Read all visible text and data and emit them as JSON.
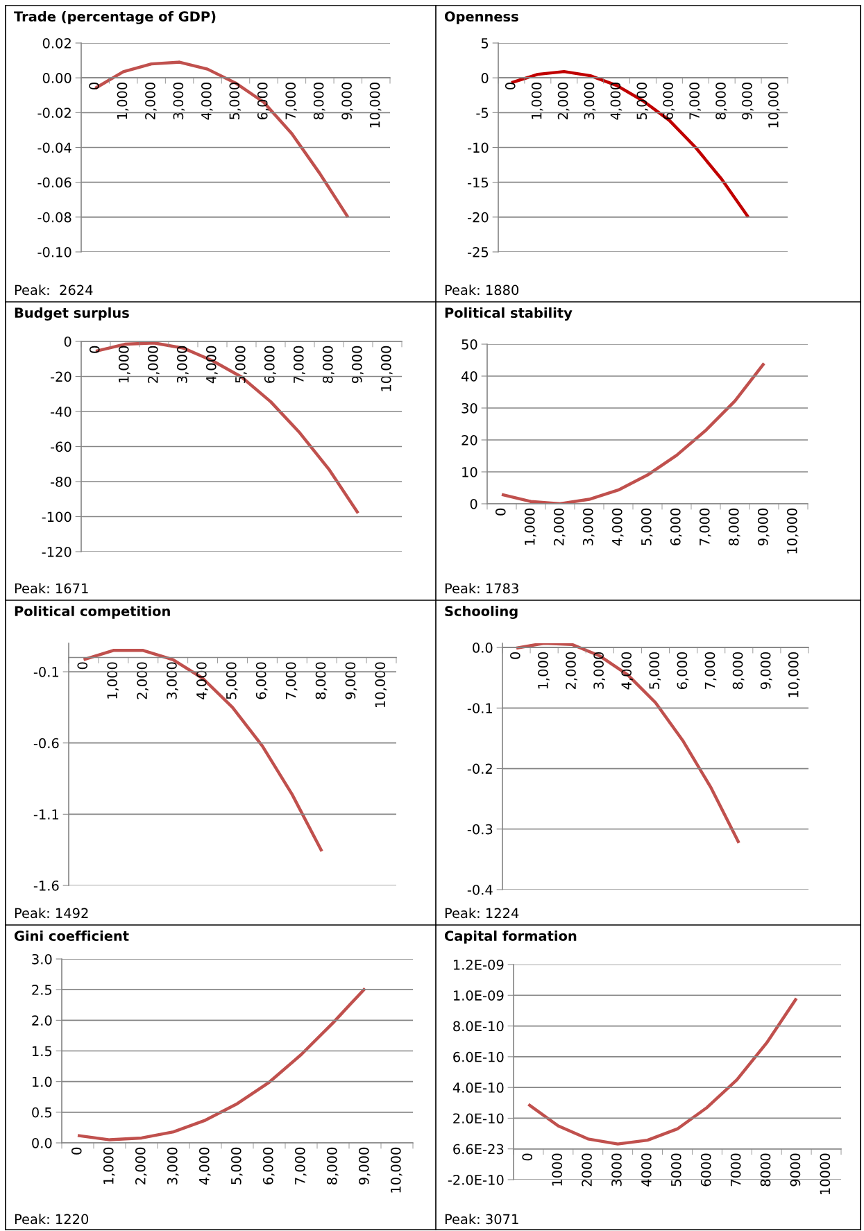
{
  "chart_data": [
    {
      "type": "line",
      "title": "Trade (percentage of GDP)",
      "categories": [
        "0",
        "1,000",
        "2,000",
        "3,000",
        "4,000",
        "5,000",
        "6,000",
        "7,000",
        "8,000",
        "9,000",
        "10,000"
      ],
      "values": [
        -0.006,
        0.0035,
        0.008,
        0.009,
        0.005,
        -0.003,
        -0.014,
        -0.032,
        -0.055,
        -0.08,
        null
      ],
      "color": "#c0504d",
      "ylim": [
        -0.1,
        0.02
      ],
      "yticks": [
        {
          "value": -0.1,
          "label": "-0.10"
        },
        {
          "value": -0.08,
          "label": "-0.08"
        },
        {
          "value": -0.06,
          "label": "-0.06"
        },
        {
          "value": -0.04,
          "label": "-0.04"
        },
        {
          "value": -0.02,
          "label": "-0.02"
        },
        {
          "value": 0,
          "label": "0.00"
        },
        {
          "value": 0.02,
          "label": "0.02"
        }
      ],
      "grid": "y",
      "annotations": [
        "Peak:  2624"
      ]
    },
    {
      "type": "line",
      "title": "Openness",
      "categories": [
        "0",
        "1,000",
        "2,000",
        "3,000",
        "4,000",
        "5,000",
        "6,000",
        "7,000",
        "8,000",
        "9,000",
        "10,000"
      ],
      "values": [
        -0.7,
        0.5,
        0.9,
        0.3,
        -1.1,
        -3.3,
        -6.1,
        -10,
        -14.6,
        -20,
        null
      ],
      "color": "#c00000",
      "ylim": [
        -25,
        5
      ],
      "yticks": [
        -25,
        -20,
        -15,
        -10,
        -5,
        0,
        5
      ],
      "grid": "y",
      "annotations": [
        "Peak: 1880"
      ]
    },
    {
      "type": "line",
      "title": "Budget surplus",
      "categories": [
        "0",
        "1,000",
        "2,000",
        "3,000",
        "4,000",
        "5,000",
        "6,000",
        "7,000",
        "8,000",
        "9,000",
        "10,000"
      ],
      "values": [
        -5.6,
        -1.6,
        -0.9,
        -3.8,
        -11,
        -20.3,
        -34.4,
        -52.2,
        -73,
        -98,
        null
      ],
      "color": "#c0504d",
      "ylim": [
        -120,
        0
      ],
      "yticks": [
        -120,
        -100,
        -80,
        -60,
        -40,
        -20,
        0
      ],
      "grid": "y",
      "annotations": [
        "Peak: 1671"
      ]
    },
    {
      "type": "line",
      "title": "Political stability",
      "categories": [
        "0",
        "1,000",
        "2,000",
        "3,000",
        "4,000",
        "5,000",
        "6,000",
        "7,000",
        "8,000",
        "9,000",
        "10,000"
      ],
      "values": [
        2.9,
        0.7,
        0,
        1.4,
        4.3,
        9,
        15.2,
        23,
        32.2,
        44,
        null
      ],
      "color": "#c0504d",
      "ylim": [
        0,
        50
      ],
      "yticks": [
        0,
        10,
        20,
        30,
        40,
        50
      ],
      "grid": "y",
      "annotations": [
        "Peak: 1783"
      ]
    },
    {
      "type": "line",
      "title": "Political competition",
      "categories": [
        "0",
        "1,000",
        "2,000",
        "3,000",
        "4,000",
        "5,000",
        "6,000",
        "7,000",
        "8,000",
        "9,000",
        "10,000"
      ],
      "values": [
        -0.015,
        0.05,
        0.05,
        -0.015,
        -0.146,
        -0.35,
        -0.62,
        -0.96,
        -1.36,
        null,
        null
      ],
      "color": "#c0504d",
      "ylim": [
        -1.6,
        0.1
      ],
      "yticks": [
        -1.6,
        -1.1,
        -0.6,
        -0.1
      ],
      "grid": "y",
      "annotations": [
        "Peak: 1492"
      ]
    },
    {
      "type": "line",
      "title": "Schooling",
      "categories": [
        "0",
        "1,000",
        "2,000",
        "3,000",
        "4,000",
        "5,000",
        "6,000",
        "7,000",
        "8,000",
        "9,000",
        "10,000"
      ],
      "values": [
        -0.001,
        0.007,
        0.005,
        -0.014,
        -0.045,
        -0.091,
        -0.155,
        -0.232,
        -0.323,
        null,
        null
      ],
      "color": "#c0504d",
      "ylim": [
        -0.4,
        0.007
      ],
      "yticks": [
        -0.4,
        -0.3,
        -0.2,
        -0.1,
        {
          "value": 0,
          "label": "0.0"
        }
      ],
      "grid": "y",
      "annotations": [
        "Peak: 1224"
      ]
    },
    {
      "type": "line",
      "title": "Gini coefficient",
      "categories": [
        "0",
        "1,000",
        "2,000",
        "3,000",
        "4,000",
        "5,000",
        "6,000",
        "7,000",
        "8,000",
        "9,000",
        "10,000"
      ],
      "values": [
        0.12,
        0.05,
        0.08,
        0.18,
        0.37,
        0.64,
        0.99,
        1.44,
        1.96,
        2.52,
        null
      ],
      "color": "#c0504d",
      "ylim": [
        0,
        3
      ],
      "yticks": [
        {
          "value": 0,
          "label": "0.0"
        },
        0.5,
        {
          "value": 1,
          "label": "1.0"
        },
        1.5,
        {
          "value": 2,
          "label": "2.0"
        },
        2.5,
        {
          "value": 3,
          "label": "3.0"
        }
      ],
      "grid": "y",
      "annotations": [
        "Peak: 1220"
      ]
    },
    {
      "type": "line",
      "title": "Capital formation",
      "categories": [
        "0",
        "1000",
        "2000",
        "3000",
        "4000",
        "5000",
        "6000",
        "7000",
        "8000",
        "9000",
        "10000"
      ],
      "values": [
        2.9e-10,
        1.5e-10,
        6.5e-11,
        3.2e-11,
        5.7e-11,
        1.3e-10,
        2.7e-10,
        4.5e-10,
        6.9e-10,
        9.8e-10,
        null
      ],
      "color": "#c0504d",
      "ylim": [
        -2e-10,
        1.2e-09
      ],
      "yticks": [
        {
          "value": -2e-10,
          "label": "-2.0E-10"
        },
        {
          "value": 6.6e-23,
          "label": "6.6E-23"
        },
        {
          "value": 2e-10,
          "label": "2.0E-10"
        },
        {
          "value": 4e-10,
          "label": "4.0E-10"
        },
        {
          "value": 6e-10,
          "label": "6.0E-10"
        },
        {
          "value": 8e-10,
          "label": "8.0E-10"
        },
        {
          "value": 1e-09,
          "label": "1.0E-09"
        },
        {
          "value": 1.2e-09,
          "label": "1.2E-09"
        }
      ],
      "grid": "y",
      "annotations": [
        "Peak: 3071"
      ]
    }
  ]
}
